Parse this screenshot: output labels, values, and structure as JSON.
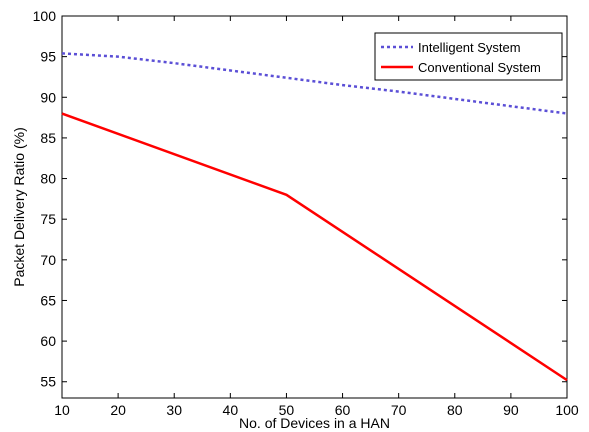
{
  "chart_data": {
    "type": "line",
    "xlabel": "No. of Devices in a HAN",
    "ylabel": "Packet Delivery Ratio (%)",
    "xlim": [
      10,
      100
    ],
    "ylim": [
      53,
      100
    ],
    "xticks": [
      10,
      20,
      30,
      40,
      50,
      60,
      70,
      80,
      90,
      100
    ],
    "yticks": [
      55,
      60,
      65,
      70,
      75,
      80,
      85,
      90,
      95,
      100
    ],
    "grid": false,
    "legend_position": "top-right",
    "series": [
      {
        "name": "Intelligent System",
        "color": "#5b4fd6",
        "style": "dotted",
        "x": [
          10,
          20,
          30,
          40,
          50,
          60,
          70,
          80,
          90,
          100
        ],
        "y": [
          95.4,
          95.0,
          94.2,
          93.3,
          92.4,
          91.5,
          90.7,
          89.8,
          88.9,
          88.0
        ]
      },
      {
        "name": "Conventional System",
        "color": "#ff0000",
        "style": "solid",
        "x": [
          10,
          50,
          100
        ],
        "y": [
          88.0,
          78.0,
          55.2
        ]
      }
    ]
  }
}
